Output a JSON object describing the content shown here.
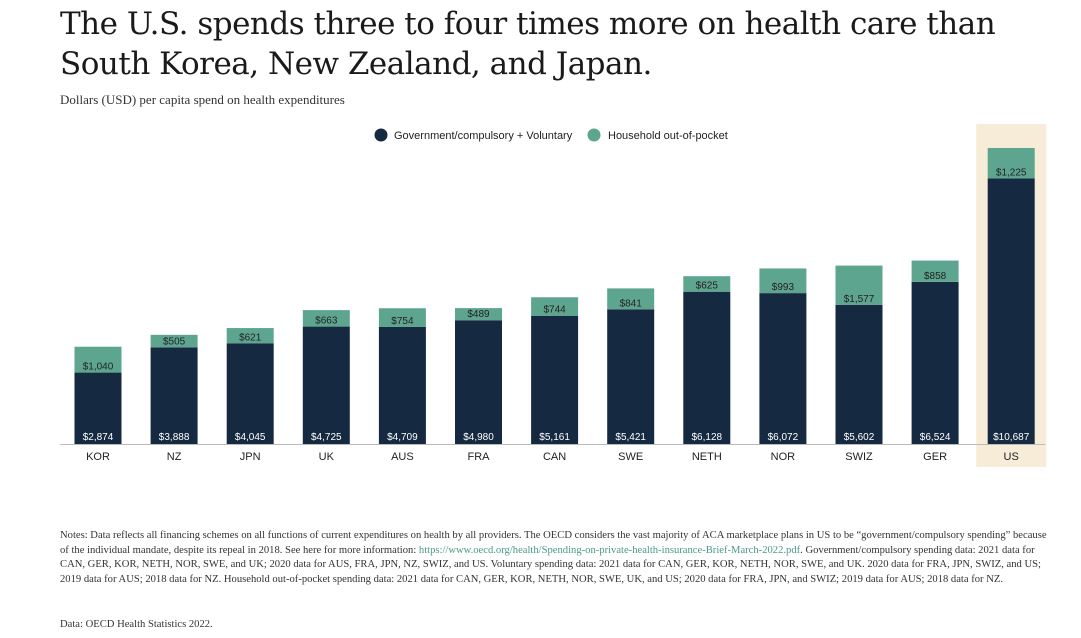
{
  "title": "The U.S. spends three to four times more on health care than South Korea, New Zealand, and Japan.",
  "subtitle": "Dollars (USD) per capita spend on health expenditures",
  "colors": {
    "government": "#152a40",
    "household": "#5ea58f",
    "highlight": "#f6ecd8",
    "link": "#4a9a86"
  },
  "chart_data": {
    "type": "bar",
    "stacked": true,
    "categories": [
      "KOR",
      "NZ",
      "JPN",
      "UK",
      "AUS",
      "FRA",
      "CAN",
      "SWE",
      "NETH",
      "NOR",
      "SWIZ",
      "GER",
      "US"
    ],
    "series": [
      {
        "name": "Government/compulsory + Voluntary",
        "values": [
          2874,
          3888,
          4045,
          4725,
          4709,
          4980,
          5161,
          5421,
          6128,
          6072,
          5602,
          6524,
          10687
        ],
        "labels": [
          "$2,874",
          "$3,888",
          "$4,045",
          "$4,725",
          "$4,709",
          "$4,980",
          "$5,161",
          "$5,421",
          "$6,128",
          "$6,072",
          "$5,602",
          "$6,524",
          "$10,687"
        ]
      },
      {
        "name": "Household out-of-pocket",
        "values": [
          1040,
          505,
          621,
          663,
          754,
          489,
          744,
          841,
          625,
          993,
          1577,
          858,
          1225
        ],
        "labels": [
          "$1,040",
          "$505",
          "$621",
          "$663",
          "$754",
          "$489",
          "$744",
          "$841",
          "$625",
          "$993",
          "$1,577",
          "$858",
          "$1,225"
        ]
      }
    ],
    "highlight": "US",
    "ylim": [
      0,
      12000
    ],
    "grid": false,
    "legend_position": "top-center"
  },
  "notes": {
    "before_link": "Notes: Data reflects all financing schemes on all functions of current expenditures on health by all providers. The OECD considers the vast majority of ACA marketplace plans in US to be “government/compulsory spending” because of the individual mandate, despite its repeal in 2018. See here for more information: ",
    "link": "https://www.oecd.org/health/Spending-on-private-health-insurance-Brief-March-2022.pdf",
    "after_link": ". Government/compulsory spending data: 2021 data for CAN, GER, KOR, NETH, NOR, SWE, and UK; 2020 data for AUS, FRA, JPN, NZ, SWIZ, and US. Voluntary spending data: 2021 data for CAN, GER, KOR, NETH, NOR, SWE, and UK. 2020 data for FRA, JPN, SWIZ, and US; 2019 data for AUS; 2018 data for NZ. Household out-of-pocket spending data: 2021 data for CAN, GER, KOR, NETH, NOR, SWE, UK, and US; 2020 data for FRA, JPN, and SWIZ; 2019 data for AUS; 2018 data for NZ."
  },
  "source": "Data: OECD Health Statistics 2022."
}
